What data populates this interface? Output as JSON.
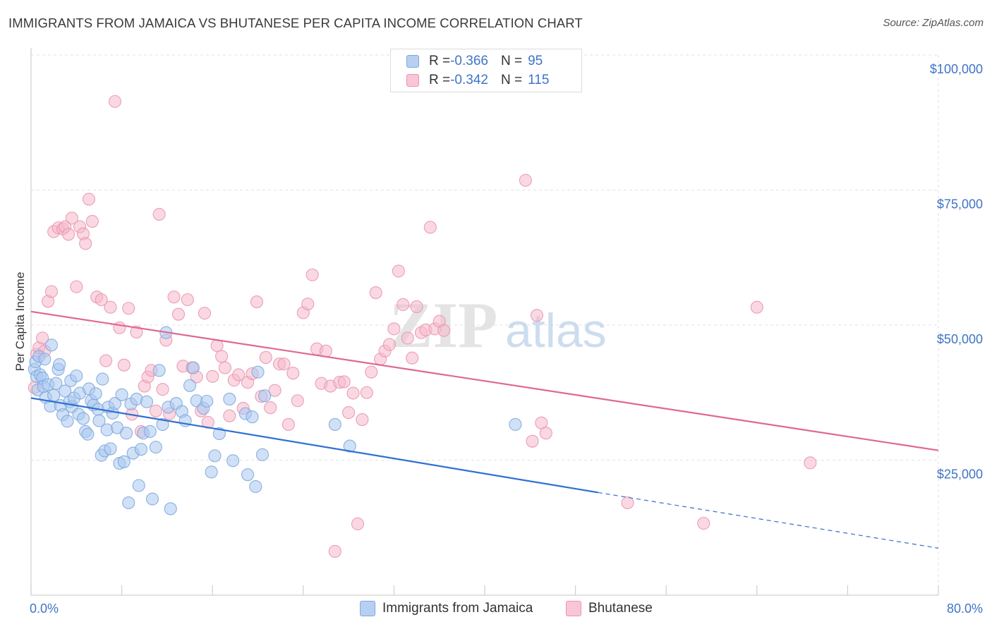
{
  "title": "IMMIGRANTS FROM JAMAICA VS BHUTANESE PER CAPITA INCOME CORRELATION CHART",
  "source": "Source: ZipAtlas.com",
  "watermark": {
    "zip": "ZIP",
    "atlas": "atlas"
  },
  "colors": {
    "blue_fill": "#a9c8f0",
    "blue_stroke": "#7fa7dd",
    "blue_line": "#2f6fcf",
    "pink_fill": "#f5b8cb",
    "pink_stroke": "#e995b0",
    "pink_line": "#e06890",
    "axis_label": "#3f74c7",
    "grid": "#e2e2e2"
  },
  "legend": {
    "rows": [
      {
        "r_label": "R = ",
        "r_value": "-0.366",
        "n_label": "N = ",
        "n_value": "95"
      },
      {
        "r_label": "R = ",
        "r_value": "-0.342",
        "n_label": "N = ",
        "n_value": "115"
      }
    ]
  },
  "bottom_legend": [
    "Immigrants from Jamaica",
    "Bhutanese"
  ],
  "chart_data": {
    "type": "scatter",
    "title": "IMMIGRANTS FROM JAMAICA VS BHUTANESE PER CAPITA INCOME CORRELATION CHART",
    "xlabel": "",
    "ylabel": "Per Capita Income",
    "xlim": [
      0,
      80
    ],
    "ylim": [
      0,
      100000
    ],
    "x_tick_labels": [
      "0.0%",
      "80.0%"
    ],
    "y_ticks": [
      25000,
      50000,
      75000,
      100000
    ],
    "y_tick_labels": [
      "$25,000",
      "$50,000",
      "$75,000",
      "$100,000"
    ],
    "grid": true,
    "legend_position": "top-center",
    "series": [
      {
        "name": "Immigrants from Jamaica",
        "r": -0.366,
        "n": 95,
        "trend": {
          "x0": 0,
          "y0": 36500,
          "x1": 50,
          "y1": 19000,
          "dashed_to_x": 80,
          "dashed_to_y": 8700
        },
        "points": [
          [
            0.3,
            41800
          ],
          [
            0.4,
            43200
          ],
          [
            0.5,
            40500
          ],
          [
            0.6,
            38000
          ],
          [
            0.7,
            44200
          ],
          [
            0.8,
            40800
          ],
          [
            1.0,
            40200
          ],
          [
            1.1,
            38600
          ],
          [
            1.2,
            43700
          ],
          [
            1.3,
            36600
          ],
          [
            1.5,
            39000
          ],
          [
            1.7,
            35000
          ],
          [
            1.8,
            46300
          ],
          [
            2.0,
            37000
          ],
          [
            2.2,
            39200
          ],
          [
            2.4,
            41800
          ],
          [
            2.5,
            42700
          ],
          [
            2.6,
            35100
          ],
          [
            2.8,
            33400
          ],
          [
            3.0,
            37800
          ],
          [
            3.2,
            32200
          ],
          [
            3.4,
            35800
          ],
          [
            3.5,
            39700
          ],
          [
            3.6,
            34900
          ],
          [
            3.8,
            36500
          ],
          [
            4.0,
            40600
          ],
          [
            4.2,
            33500
          ],
          [
            4.3,
            37400
          ],
          [
            4.6,
            32700
          ],
          [
            4.8,
            30300
          ],
          [
            5.0,
            29800
          ],
          [
            5.1,
            38200
          ],
          [
            5.3,
            36000
          ],
          [
            5.5,
            35200
          ],
          [
            5.7,
            37300
          ],
          [
            5.9,
            34400
          ],
          [
            6.0,
            32300
          ],
          [
            6.2,
            25900
          ],
          [
            6.3,
            40000
          ],
          [
            6.5,
            26700
          ],
          [
            6.7,
            30600
          ],
          [
            6.8,
            34800
          ],
          [
            7.0,
            27100
          ],
          [
            7.2,
            33700
          ],
          [
            7.4,
            35500
          ],
          [
            7.6,
            31000
          ],
          [
            7.8,
            24400
          ],
          [
            8.0,
            37100
          ],
          [
            8.2,
            24700
          ],
          [
            8.4,
            30000
          ],
          [
            8.6,
            17100
          ],
          [
            8.8,
            35400
          ],
          [
            9.0,
            26300
          ],
          [
            9.3,
            36300
          ],
          [
            9.5,
            20300
          ],
          [
            9.7,
            27000
          ],
          [
            9.9,
            30000
          ],
          [
            10.2,
            35800
          ],
          [
            10.5,
            30300
          ],
          [
            10.7,
            17800
          ],
          [
            11.0,
            27400
          ],
          [
            11.3,
            41600
          ],
          [
            11.6,
            31600
          ],
          [
            11.9,
            48600
          ],
          [
            12.1,
            34800
          ],
          [
            12.3,
            16000
          ],
          [
            12.8,
            35500
          ],
          [
            13.3,
            34000
          ],
          [
            13.6,
            32300
          ],
          [
            14.0,
            38800
          ],
          [
            14.3,
            42100
          ],
          [
            14.6,
            36000
          ],
          [
            15.2,
            34600
          ],
          [
            15.5,
            35900
          ],
          [
            15.9,
            22800
          ],
          [
            16.2,
            25800
          ],
          [
            16.6,
            29900
          ],
          [
            17.5,
            36300
          ],
          [
            17.8,
            24900
          ],
          [
            18.9,
            33600
          ],
          [
            19.1,
            22300
          ],
          [
            19.5,
            33000
          ],
          [
            19.8,
            20100
          ],
          [
            20.0,
            41300
          ],
          [
            20.4,
            26000
          ],
          [
            20.6,
            36900
          ],
          [
            26.8,
            31600
          ],
          [
            28.1,
            27600
          ],
          [
            42.7,
            31600
          ]
        ]
      },
      {
        "name": "Bhutanese",
        "r": -0.342,
        "n": 115,
        "trend": {
          "x0": 0,
          "y0": 52500,
          "x1": 80,
          "y1": 26800
        },
        "points": [
          [
            0.3,
            38400
          ],
          [
            0.5,
            44600
          ],
          [
            0.7,
            45800
          ],
          [
            1.0,
            47600
          ],
          [
            1.2,
            45200
          ],
          [
            1.5,
            54400
          ],
          [
            1.8,
            56200
          ],
          [
            2.0,
            67300
          ],
          [
            2.4,
            68000
          ],
          [
            2.8,
            67800
          ],
          [
            3.0,
            68200
          ],
          [
            3.3,
            66800
          ],
          [
            3.6,
            69800
          ],
          [
            4.0,
            57100
          ],
          [
            4.3,
            68200
          ],
          [
            4.6,
            66900
          ],
          [
            4.8,
            65100
          ],
          [
            5.1,
            73300
          ],
          [
            5.4,
            69200
          ],
          [
            5.8,
            55200
          ],
          [
            6.2,
            54700
          ],
          [
            6.6,
            43400
          ],
          [
            7.0,
            53300
          ],
          [
            7.4,
            91400
          ],
          [
            7.8,
            49500
          ],
          [
            8.2,
            42600
          ],
          [
            8.6,
            53100
          ],
          [
            8.9,
            33500
          ],
          [
            9.3,
            48700
          ],
          [
            9.7,
            30300
          ],
          [
            10.0,
            38700
          ],
          [
            10.3,
            40400
          ],
          [
            10.6,
            41600
          ],
          [
            11.0,
            34100
          ],
          [
            11.3,
            70500
          ],
          [
            11.6,
            38100
          ],
          [
            11.9,
            47200
          ],
          [
            12.2,
            33600
          ],
          [
            12.6,
            55200
          ],
          [
            13.0,
            52000
          ],
          [
            13.4,
            42400
          ],
          [
            13.8,
            54700
          ],
          [
            14.2,
            42100
          ],
          [
            14.6,
            40400
          ],
          [
            15.0,
            34100
          ],
          [
            15.3,
            52200
          ],
          [
            15.6,
            32000
          ],
          [
            16.0,
            40500
          ],
          [
            16.4,
            46200
          ],
          [
            16.8,
            44200
          ],
          [
            17.1,
            42100
          ],
          [
            17.5,
            33200
          ],
          [
            17.9,
            39800
          ],
          [
            18.3,
            40800
          ],
          [
            18.7,
            34600
          ],
          [
            19.1,
            39400
          ],
          [
            19.5,
            41000
          ],
          [
            19.9,
            54300
          ],
          [
            20.3,
            36800
          ],
          [
            20.7,
            44000
          ],
          [
            21.1,
            34700
          ],
          [
            21.5,
            37900
          ],
          [
            21.9,
            42800
          ],
          [
            22.3,
            42800
          ],
          [
            22.7,
            31600
          ],
          [
            23.1,
            41100
          ],
          [
            23.5,
            36000
          ],
          [
            24.0,
            52300
          ],
          [
            24.4,
            53900
          ],
          [
            24.8,
            59300
          ],
          [
            25.2,
            45600
          ],
          [
            25.6,
            39200
          ],
          [
            26.0,
            45200
          ],
          [
            26.4,
            38700
          ],
          [
            26.8,
            8100
          ],
          [
            27.2,
            39400
          ],
          [
            27.6,
            39500
          ],
          [
            28.0,
            33800
          ],
          [
            28.4,
            37400
          ],
          [
            28.8,
            13200
          ],
          [
            29.2,
            32500
          ],
          [
            29.6,
            37500
          ],
          [
            30.0,
            41300
          ],
          [
            30.4,
            56000
          ],
          [
            30.8,
            43700
          ],
          [
            31.2,
            45200
          ],
          [
            31.6,
            46400
          ],
          [
            32.0,
            49300
          ],
          [
            32.4,
            60000
          ],
          [
            32.8,
            53800
          ],
          [
            33.2,
            47600
          ],
          [
            33.6,
            43900
          ],
          [
            34.0,
            53400
          ],
          [
            34.4,
            48600
          ],
          [
            34.8,
            49100
          ],
          [
            35.2,
            68100
          ],
          [
            35.6,
            49300
          ],
          [
            36.0,
            50700
          ],
          [
            36.4,
            49000
          ],
          [
            43.6,
            76800
          ],
          [
            44.2,
            28500
          ],
          [
            44.6,
            51800
          ],
          [
            45.0,
            31900
          ],
          [
            45.4,
            30000
          ],
          [
            52.6,
            17100
          ],
          [
            59.3,
            13300
          ],
          [
            64.0,
            53300
          ],
          [
            68.7,
            24500
          ]
        ]
      }
    ]
  }
}
